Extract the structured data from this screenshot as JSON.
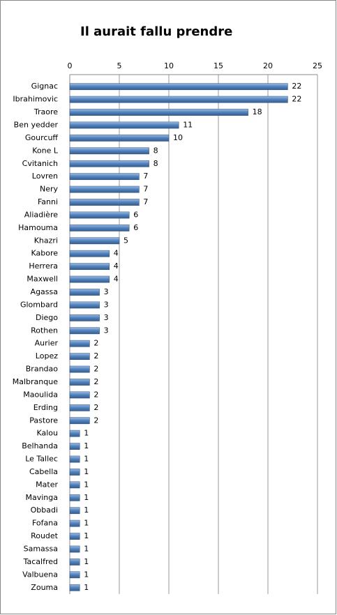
{
  "chart_data": {
    "type": "bar",
    "orientation": "horizontal",
    "title": "Il aurait fallu prendre",
    "categories": [
      "Gignac",
      "Ibrahimovic",
      "Traore",
      "Ben yedder",
      "Gourcuff",
      "Kone L",
      "Cvitanich",
      "Lovren",
      "Nery",
      "Fanni",
      "Aliadière",
      "Hamouma",
      "Khazri",
      "Kabore",
      "Herrera",
      "Maxwell",
      "Agassa",
      "Glombard",
      "Diego",
      "Rothen",
      "Aurier",
      "Lopez",
      "Brandao",
      "Malbranque",
      "Maoulida",
      "Erding",
      "Pastore",
      "Kalou",
      "Belhanda",
      "Le Tallec",
      "Cabella",
      "Mater",
      "Mavinga",
      "Obbadi",
      "Fofana",
      "Roudet",
      "Samassa",
      "Tacalfred",
      "Valbuena",
      "Zouma"
    ],
    "values": [
      22,
      22,
      18,
      11,
      10,
      8,
      8,
      7,
      7,
      7,
      6,
      6,
      5,
      4,
      4,
      4,
      3,
      3,
      3,
      3,
      2,
      2,
      2,
      2,
      2,
      2,
      2,
      1,
      1,
      1,
      1,
      1,
      1,
      1,
      1,
      1,
      1,
      1,
      1,
      1
    ],
    "color": "#4f81bd",
    "xlim": [
      0,
      25
    ],
    "xticks": [
      0,
      5,
      10,
      15,
      20,
      25
    ],
    "grid": true
  }
}
